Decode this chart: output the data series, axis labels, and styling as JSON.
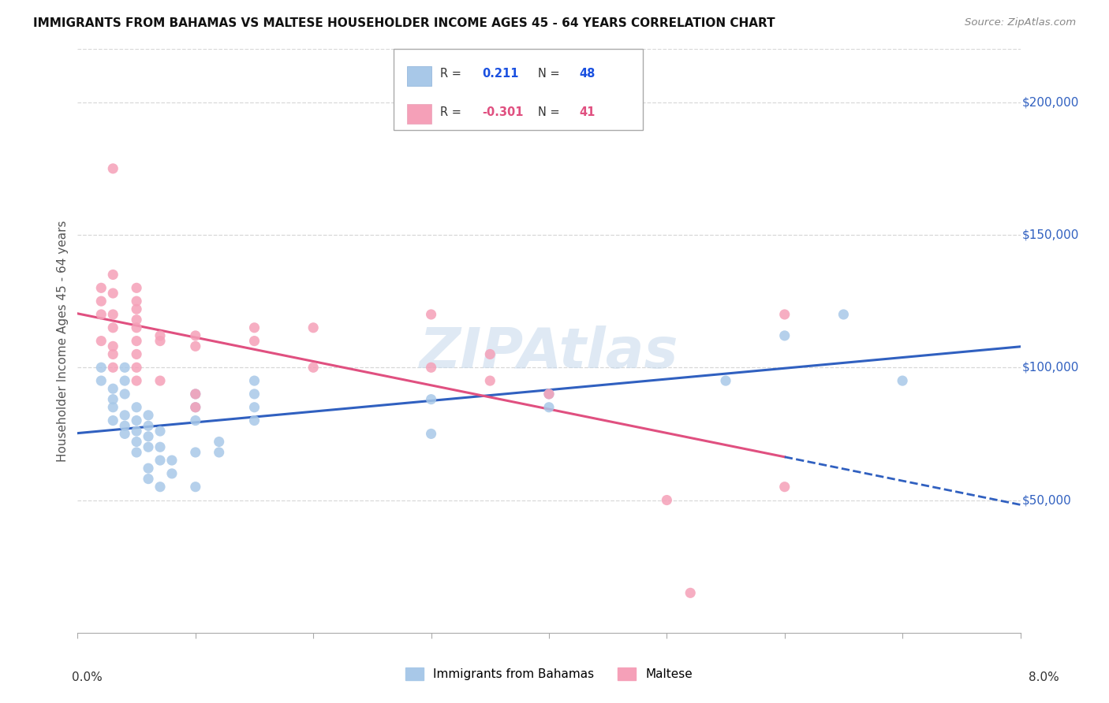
{
  "title": "IMMIGRANTS FROM BAHAMAS VS MALTESE HOUSEHOLDER INCOME AGES 45 - 64 YEARS CORRELATION CHART",
  "source": "Source: ZipAtlas.com",
  "ylabel": "Householder Income Ages 45 - 64 years",
  "ytick_values": [
    50000,
    100000,
    150000,
    200000
  ],
  "ytick_labels": [
    "$50,000",
    "$100,000",
    "$150,000",
    "$200,000"
  ],
  "ylim": [
    0,
    220000
  ],
  "xlim": [
    0.0,
    0.08
  ],
  "bahamas_color": "#a8c8e8",
  "maltese_color": "#f5a0b8",
  "bahamas_line_color": "#3060c0",
  "maltese_line_color": "#e05080",
  "bahamas_R": 0.211,
  "bahamas_N": 48,
  "maltese_R": -0.301,
  "maltese_N": 41,
  "background_color": "#ffffff",
  "grid_color": "#d8d8d8",
  "watermark": "ZIPAtlas",
  "watermark_color": "#c5d8ec",
  "legend_label_color": "#3060c0",
  "legend_R_blue": "#1a50e0",
  "legend_R_pink": "#e05080",
  "bahamas_points": [
    [
      0.002,
      95000
    ],
    [
      0.002,
      100000
    ],
    [
      0.003,
      88000
    ],
    [
      0.003,
      92000
    ],
    [
      0.003,
      80000
    ],
    [
      0.003,
      85000
    ],
    [
      0.004,
      78000
    ],
    [
      0.004,
      82000
    ],
    [
      0.004,
      90000
    ],
    [
      0.004,
      95000
    ],
    [
      0.004,
      100000
    ],
    [
      0.004,
      75000
    ],
    [
      0.005,
      72000
    ],
    [
      0.005,
      76000
    ],
    [
      0.005,
      80000
    ],
    [
      0.005,
      85000
    ],
    [
      0.005,
      68000
    ],
    [
      0.006,
      70000
    ],
    [
      0.006,
      74000
    ],
    [
      0.006,
      78000
    ],
    [
      0.006,
      82000
    ],
    [
      0.006,
      58000
    ],
    [
      0.006,
      62000
    ],
    [
      0.007,
      65000
    ],
    [
      0.007,
      70000
    ],
    [
      0.007,
      76000
    ],
    [
      0.007,
      55000
    ],
    [
      0.008,
      60000
    ],
    [
      0.008,
      65000
    ],
    [
      0.01,
      68000
    ],
    [
      0.01,
      80000
    ],
    [
      0.01,
      85000
    ],
    [
      0.01,
      90000
    ],
    [
      0.01,
      55000
    ],
    [
      0.012,
      72000
    ],
    [
      0.012,
      68000
    ],
    [
      0.015,
      90000
    ],
    [
      0.015,
      95000
    ],
    [
      0.015,
      85000
    ],
    [
      0.015,
      80000
    ],
    [
      0.03,
      88000
    ],
    [
      0.03,
      75000
    ],
    [
      0.04,
      90000
    ],
    [
      0.04,
      85000
    ],
    [
      0.055,
      95000
    ],
    [
      0.06,
      112000
    ],
    [
      0.065,
      120000
    ],
    [
      0.07,
      95000
    ]
  ],
  "maltese_points": [
    [
      0.002,
      110000
    ],
    [
      0.002,
      120000
    ],
    [
      0.002,
      125000
    ],
    [
      0.002,
      130000
    ],
    [
      0.003,
      105000
    ],
    [
      0.003,
      115000
    ],
    [
      0.003,
      120000
    ],
    [
      0.003,
      100000
    ],
    [
      0.003,
      108000
    ],
    [
      0.003,
      175000
    ],
    [
      0.003,
      128000
    ],
    [
      0.003,
      135000
    ],
    [
      0.005,
      105000
    ],
    [
      0.005,
      110000
    ],
    [
      0.005,
      115000
    ],
    [
      0.005,
      118000
    ],
    [
      0.005,
      122000
    ],
    [
      0.005,
      125000
    ],
    [
      0.005,
      130000
    ],
    [
      0.005,
      100000
    ],
    [
      0.005,
      95000
    ],
    [
      0.007,
      110000
    ],
    [
      0.007,
      112000
    ],
    [
      0.007,
      95000
    ],
    [
      0.01,
      108000
    ],
    [
      0.01,
      112000
    ],
    [
      0.01,
      90000
    ],
    [
      0.01,
      85000
    ],
    [
      0.015,
      115000
    ],
    [
      0.015,
      110000
    ],
    [
      0.02,
      100000
    ],
    [
      0.02,
      115000
    ],
    [
      0.03,
      120000
    ],
    [
      0.03,
      100000
    ],
    [
      0.035,
      105000
    ],
    [
      0.035,
      95000
    ],
    [
      0.04,
      90000
    ],
    [
      0.05,
      50000
    ],
    [
      0.052,
      15000
    ],
    [
      0.06,
      120000
    ],
    [
      0.06,
      55000
    ]
  ]
}
